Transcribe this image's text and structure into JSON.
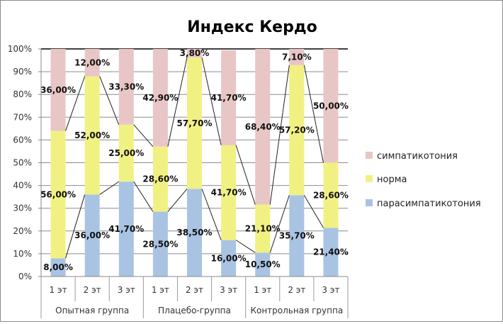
{
  "chart_data": {
    "type": "bar",
    "stacked": "percent",
    "title": "Индекс Кердо",
    "categories": [
      "1 эт",
      "2 эт",
      "3 эт",
      "1 эт",
      "2 эт",
      "3 эт",
      "1 эт",
      "2 эт",
      "3 эт"
    ],
    "groups": [
      {
        "label": "Опытная группа",
        "span": 3
      },
      {
        "label": "Плацебо-группа",
        "span": 3
      },
      {
        "label": "Контрольная группа",
        "span": 3
      }
    ],
    "series": [
      {
        "name": "парасимпатикотония",
        "color": "#a9c3e3",
        "values": [
          8.0,
          36.0,
          41.7,
          28.5,
          38.5,
          16.0,
          10.5,
          35.7,
          21.4
        ],
        "labels": [
          "8,00%",
          "36,00%",
          "41,70%",
          "28,50%",
          "38,50%",
          "16,00%",
          "10,50%",
          "35,70%",
          "21,40%"
        ]
      },
      {
        "name": "норма",
        "color": "#f1f183",
        "values": [
          56.0,
          52.0,
          25.0,
          28.6,
          57.7,
          41.7,
          21.1,
          57.2,
          28.6
        ],
        "labels": [
          "56,00%",
          "52,00%",
          "25,00%",
          "28,60%",
          "57,70%",
          "41,70%",
          "21,10%",
          "57,20%",
          "28,60%"
        ]
      },
      {
        "name": "симпатикотония",
        "color": "#e8c6c6",
        "values": [
          36.0,
          12.0,
          33.3,
          42.9,
          3.8,
          41.7,
          68.4,
          7.1,
          50.0
        ],
        "labels": [
          "36,00%",
          "12,00%",
          "33,30%",
          "42,90%",
          "3,80%",
          "41,70%",
          "68,40%",
          "7,10%",
          "50,00%"
        ]
      }
    ],
    "yticks": [
      "0%",
      "10%",
      "20%",
      "30%",
      "40%",
      "50%",
      "60%",
      "70%",
      "80%",
      "90%",
      "100%"
    ],
    "ylim": [
      0,
      100
    ],
    "grid": true,
    "series_lines": true,
    "legend": "right"
  }
}
